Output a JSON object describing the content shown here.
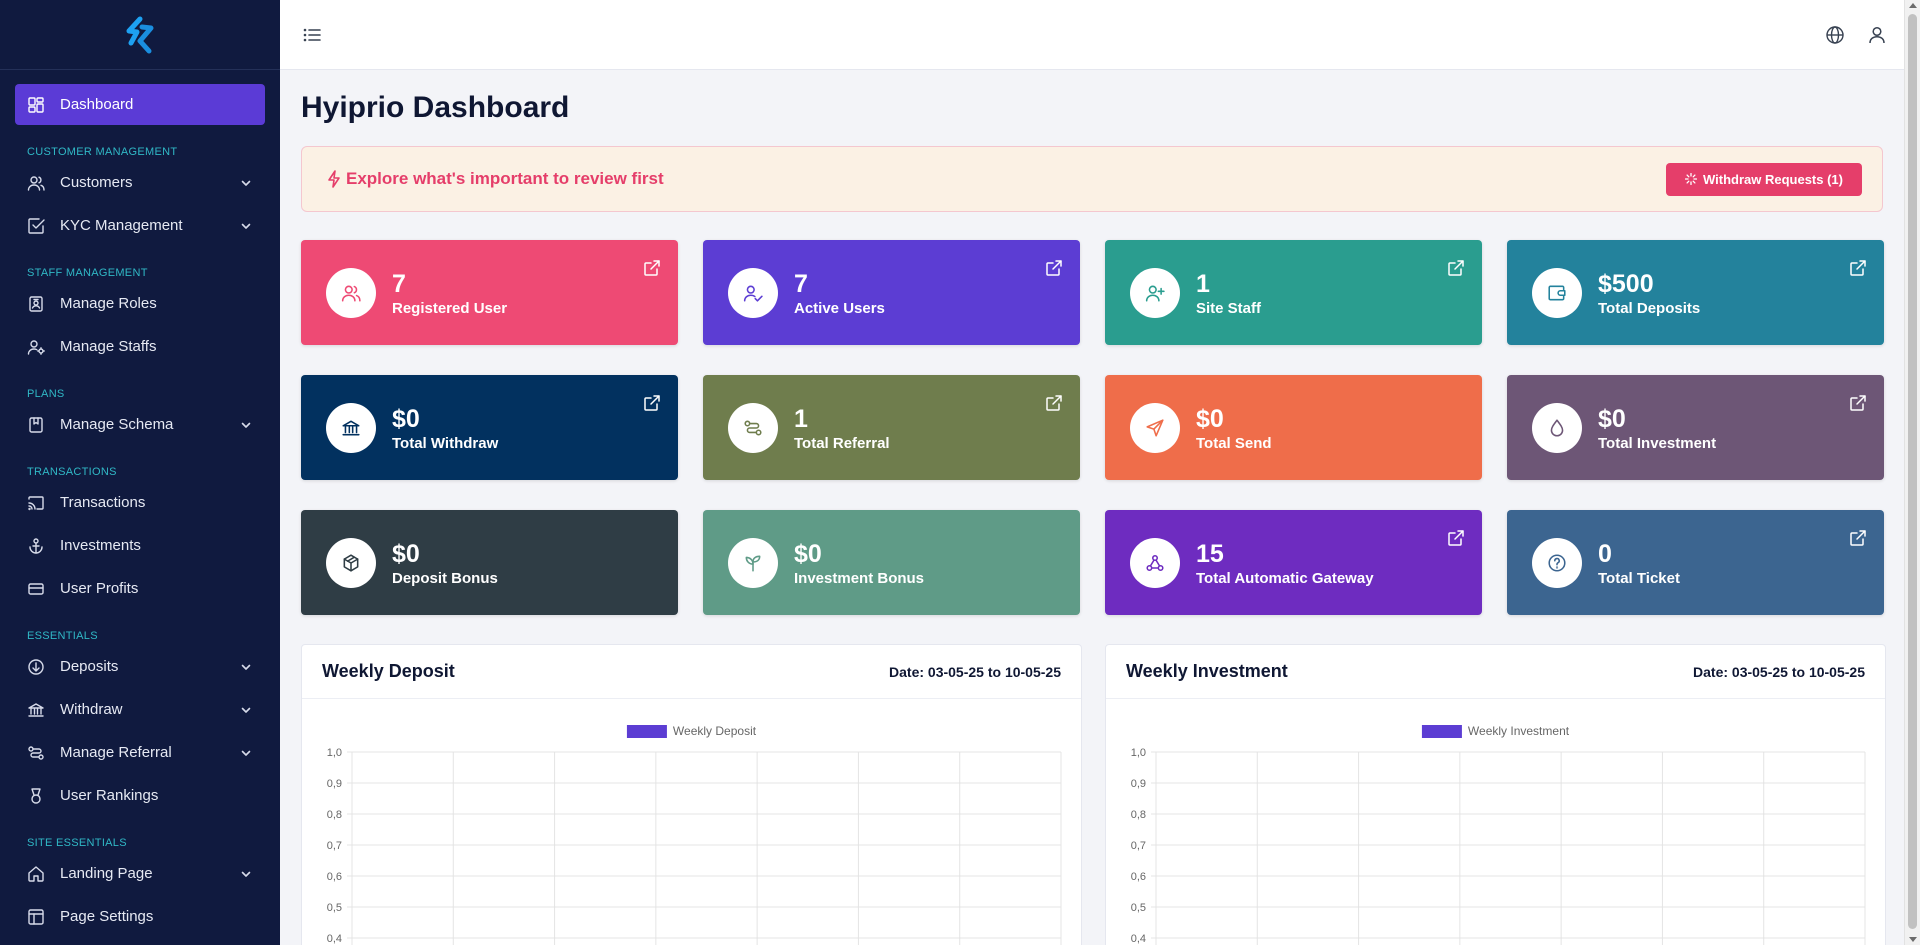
{
  "sidebar": {
    "active_color": "#5b3bd6",
    "items": [
      {
        "label": "Dashboard",
        "icon": "dashboard-icon",
        "active": true
      },
      {
        "section": "CUSTOMER MANAGEMENT"
      },
      {
        "label": "Customers",
        "icon": "users-icon",
        "chevron": true
      },
      {
        "label": "KYC Management",
        "icon": "checkbox-icon",
        "chevron": true
      },
      {
        "section": "STAFF MANAGEMENT"
      },
      {
        "label": "Manage Roles",
        "icon": "id-badge-icon"
      },
      {
        "label": "Manage Staffs",
        "icon": "user-gear-icon"
      },
      {
        "section": "PLANS"
      },
      {
        "label": "Manage Schema",
        "icon": "bookmark-icon",
        "chevron": true
      },
      {
        "section": "TRANSACTIONS"
      },
      {
        "label": "Transactions",
        "icon": "cast-icon"
      },
      {
        "label": "Investments",
        "icon": "anchor-icon"
      },
      {
        "label": "User Profits",
        "icon": "credit-card-icon"
      },
      {
        "section": "ESSENTIALS"
      },
      {
        "label": "Deposits",
        "icon": "arrow-down-circle-icon",
        "chevron": true
      },
      {
        "label": "Withdraw",
        "icon": "bank-icon",
        "chevron": true
      },
      {
        "label": "Manage Referral",
        "icon": "link-icon",
        "chevron": true
      },
      {
        "label": "User Rankings",
        "icon": "medal-icon"
      },
      {
        "section": "SITE ESSENTIALS"
      },
      {
        "label": "Landing Page",
        "icon": "home-icon",
        "chevron": true
      },
      {
        "label": "Page Settings",
        "icon": "layout-icon"
      }
    ]
  },
  "header": {
    "title": "Hyiprio Dashboard"
  },
  "notice": {
    "text": "Explore what's important to review first",
    "button": "Withdraw Requests (1)",
    "color": "#e53e6a"
  },
  "cards": [
    {
      "value": "7",
      "label": "Registered User",
      "color": "#ee4a74",
      "icon": "users-icon",
      "link": true
    },
    {
      "value": "7",
      "label": "Active Users",
      "color": "#5c3dd3",
      "icon": "user-check-icon",
      "link": true
    },
    {
      "value": "1",
      "label": "Site Staff",
      "color": "#2a9d8f",
      "icon": "user-plus-icon",
      "link": true
    },
    {
      "value": "$500",
      "label": "Total Deposits",
      "color": "#23829c",
      "icon": "wallet-icon",
      "link": true
    },
    {
      "value": "$0",
      "label": "Total Withdraw",
      "color": "#02315f",
      "icon": "bank-icon",
      "link": true
    },
    {
      "value": "1",
      "label": "Total Referral",
      "color": "#6f7d4d",
      "icon": "link-icon",
      "link": true
    },
    {
      "value": "$0",
      "label": "Total Send",
      "color": "#ef6d4a",
      "icon": "send-icon",
      "link": false
    },
    {
      "value": "$0",
      "label": "Total Investment",
      "color": "#6d5676",
      "icon": "droplet-icon",
      "link": true
    },
    {
      "value": "$0",
      "label": "Deposit Bonus",
      "color": "#2f3d45",
      "icon": "box-icon",
      "link": false
    },
    {
      "value": "$0",
      "label": "Investment Bonus",
      "color": "#5f9b87",
      "icon": "sprout-icon",
      "link": false
    },
    {
      "value": "15",
      "label": "Total Automatic Gateway",
      "color": "#6e2cc0",
      "icon": "webhook-icon",
      "link": true
    },
    {
      "value": "0",
      "label": "Total Ticket",
      "color": "#3c6590",
      "icon": "help-circle-icon",
      "link": true
    }
  ],
  "charts": [
    {
      "title": "Weekly Deposit",
      "date": "Date: 03-05-25 to 10-05-25"
    },
    {
      "title": "Weekly Investment",
      "date": "Date: 03-05-25 to 10-05-25"
    }
  ],
  "chart_data": [
    {
      "type": "bar",
      "title": "Weekly Deposit",
      "legend": "Weekly Deposit",
      "legend_position": "top",
      "series_color": "#5c3dd3",
      "categories": [
        "",
        "",
        "",
        "",
        "",
        "",
        ""
      ],
      "series": [
        {
          "name": "Weekly Deposit",
          "values": [
            0,
            0,
            0,
            0,
            0,
            0,
            0
          ]
        }
      ],
      "ylim": [
        0,
        1
      ],
      "y_ticks": [
        "1,0",
        "0,9",
        "0,8",
        "0,7",
        "0,6",
        "0,5",
        "0,4"
      ],
      "grid": true
    },
    {
      "type": "bar",
      "title": "Weekly Investment",
      "legend": "Weekly Investment",
      "legend_position": "top",
      "series_color": "#5c3dd3",
      "categories": [
        "",
        "",
        "",
        "",
        "",
        "",
        ""
      ],
      "series": [
        {
          "name": "Weekly Investment",
          "values": [
            0,
            0,
            0,
            0,
            0,
            0,
            0
          ]
        }
      ],
      "ylim": [
        0,
        1
      ],
      "y_ticks": [
        "1,0",
        "0,9",
        "0,8",
        "0,7",
        "0,6",
        "0,5",
        "0,4"
      ],
      "grid": true
    }
  ]
}
